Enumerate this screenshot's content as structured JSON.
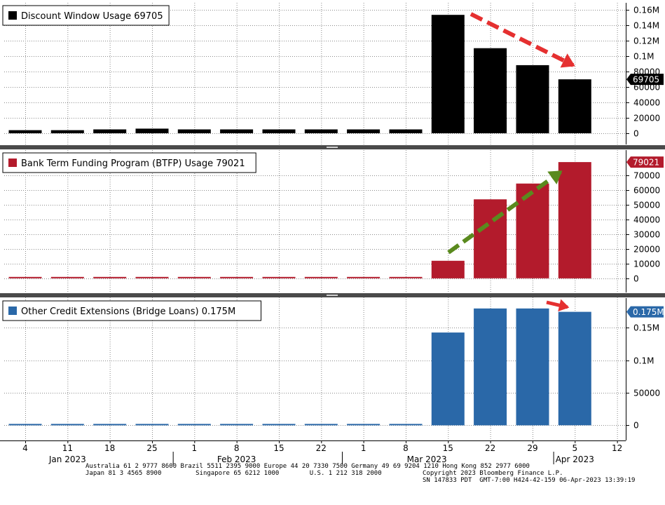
{
  "chart_data": [
    {
      "type": "bar",
      "title": "Discount Window Usage 69705",
      "color": "#000000",
      "categories": [
        "4",
        "11",
        "18",
        "25",
        "1",
        "8",
        "15",
        "22",
        "1",
        "8",
        "15",
        "22",
        "29",
        "5"
      ],
      "values": [
        4000,
        4000,
        5000,
        6000,
        5000,
        5000,
        5000,
        5000,
        5000,
        5000,
        153000,
        110000,
        88000,
        69705
      ],
      "ylim": [
        0,
        165000
      ],
      "ticks": [
        0,
        20000,
        40000,
        60000,
        80000,
        100000,
        120000,
        140000,
        160000
      ],
      "tick_labels": [
        "0",
        "20000",
        "40000",
        "60000",
        "80000",
        "0.1M",
        "0.12M",
        "0.14M",
        "0.16M"
      ],
      "last_value_label": "69705",
      "annotation": {
        "type": "arrow",
        "color": "#e53030",
        "direction": "down"
      }
    },
    {
      "type": "bar",
      "title": "Bank Term Funding Program (BTFP) Usage 79021",
      "color": "#b31b2c",
      "categories": [
        "4",
        "11",
        "18",
        "25",
        "1",
        "8",
        "15",
        "22",
        "1",
        "8",
        "15",
        "22",
        "29",
        "5"
      ],
      "values": [
        0,
        0,
        0,
        0,
        0,
        0,
        0,
        0,
        0,
        0,
        11943,
        53669,
        64403,
        79021
      ],
      "ylim": [
        -2000,
        80000
      ],
      "ticks": [
        0,
        10000,
        20000,
        30000,
        40000,
        50000,
        60000,
        70000
      ],
      "tick_labels": [
        "0",
        "10000",
        "20000",
        "30000",
        "40000",
        "50000",
        "60000",
        "70000"
      ],
      "last_value_label": "79021",
      "annotation": {
        "type": "arrow",
        "color": "#5a8a1e",
        "direction": "up"
      }
    },
    {
      "type": "bar",
      "title": "Other Credit Extensions (Bridge Loans) 0.175M",
      "color": "#2a68a8",
      "categories": [
        "4",
        "11",
        "18",
        "25",
        "1",
        "8",
        "15",
        "22",
        "1",
        "8",
        "15",
        "22",
        "29",
        "5"
      ],
      "values": [
        0,
        0,
        0,
        0,
        0,
        0,
        0,
        0,
        0,
        0,
        142800,
        179800,
        179800,
        174600
      ],
      "ylim": [
        -5000,
        185000
      ],
      "ticks": [
        0,
        50000,
        100000,
        150000
      ],
      "tick_labels": [
        "0",
        "50000",
        "0.1M",
        "0.15M"
      ],
      "last_value_label": "0.175M",
      "annotation": {
        "type": "arrow",
        "color": "#e53030",
        "direction": "right"
      }
    }
  ],
  "x_axis": {
    "day_labels": [
      "4",
      "11",
      "18",
      "25",
      "1",
      "8",
      "15",
      "22",
      "1",
      "8",
      "15",
      "22",
      "29",
      "5",
      "12"
    ],
    "months": [
      {
        "label": "Jan 2023",
        "at": 1
      },
      {
        "label": "Feb 2023",
        "at": 5
      },
      {
        "label": "Mar 2023",
        "at": 9.5
      },
      {
        "label": "Apr 2023",
        "at": 13
      }
    ]
  },
  "footer": {
    "line1": "Australia 61 2 9777 8600 Brazil 5511 2395 9000 Europe 44 20 7330 7500 Germany 49 69 9204 1210 Hong Kong 852 2977 6000",
    "line2a": "Japan 81 3 4565 8900         Singapore 65 6212 1000        U.S. 1 212 318 2000",
    "line2b": "Copyright 2023 Bloomberg Finance L.P.",
    "line3": "SN 147833 PDT  GMT-7:00 H424-42-159 06-Apr-2023 13:39:19"
  }
}
